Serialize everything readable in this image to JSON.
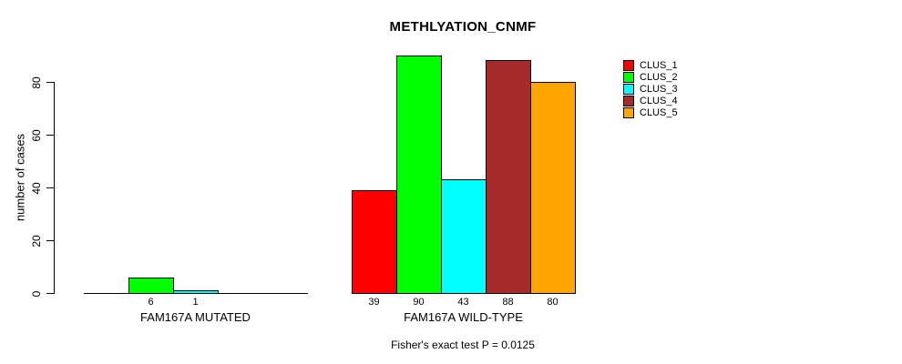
{
  "chart_data": {
    "type": "bar",
    "title": "METHLYATION_CNMF",
    "ylabel": "number of cases",
    "xlabel": "",
    "ylim": [
      0,
      90
    ],
    "yticks": [
      0,
      20,
      40,
      60,
      80
    ],
    "grid": false,
    "legend_position": "top-right",
    "categories": [
      "FAM167A MUTATED",
      "FAM167A WILD-TYPE"
    ],
    "series": [
      {
        "name": "CLUS_1",
        "color": "#ff0000",
        "values": [
          0,
          39
        ]
      },
      {
        "name": "CLUS_2",
        "color": "#00ff00",
        "values": [
          6,
          90
        ]
      },
      {
        "name": "CLUS_3",
        "color": "#00ffff",
        "values": [
          1,
          43
        ]
      },
      {
        "name": "CLUS_4",
        "color": "#a52a2a",
        "values": [
          0,
          88
        ]
      },
      {
        "name": "CLUS_5",
        "color": "#ffa500",
        "values": [
          0,
          80
        ]
      }
    ],
    "bar_value_labels": [
      [
        "6",
        "1"
      ],
      [
        "39",
        "90",
        "43",
        "88",
        "80"
      ]
    ],
    "footnote": "Fisher's exact test P = 0.0125",
    "axis_color": "#000000",
    "background_color": "#ffffff"
  }
}
